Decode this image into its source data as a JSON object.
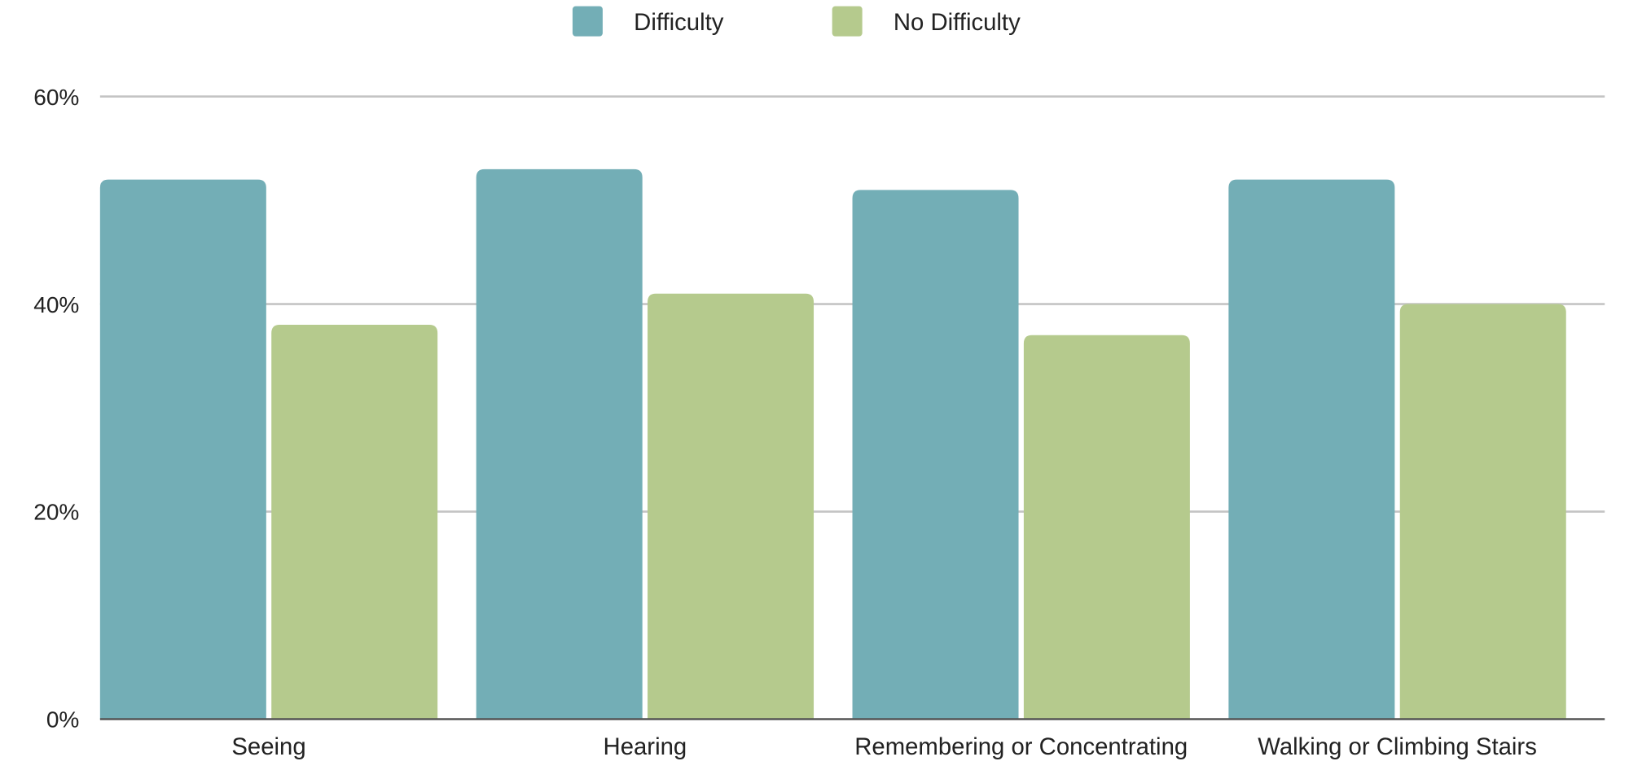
{
  "chart_data": {
    "type": "bar",
    "categories": [
      "Seeing",
      "Hearing",
      "Remembering or Concentrating",
      "Walking or Climbing Stairs"
    ],
    "series": [
      {
        "name": "Difficulty",
        "values": [
          52,
          53,
          51,
          52
        ],
        "color": "#73aeb6"
      },
      {
        "name": "No Difficulty",
        "values": [
          38,
          41,
          37,
          40
        ],
        "color": "#b5ca8d"
      }
    ],
    "yticks": [
      "0%",
      "20%",
      "40%",
      "60%"
    ],
    "ylim": [
      0,
      60
    ],
    "grid": true,
    "legend": "top-center",
    "xlabel": "",
    "ylabel": ""
  }
}
